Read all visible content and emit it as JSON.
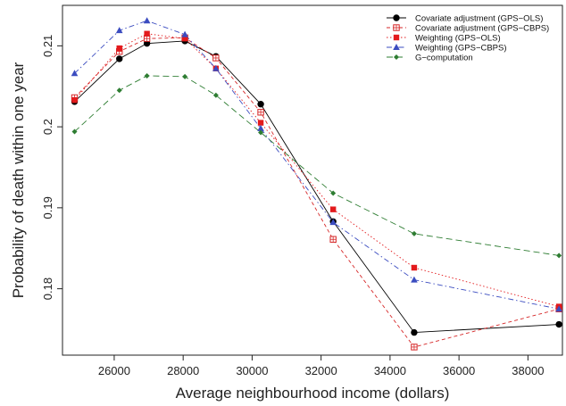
{
  "chart_data": {
    "type": "line",
    "xlabel": "Average neighbourhood income (dollars)",
    "ylabel": "Probability of death within one year",
    "xlim": [
      24500,
      39000
    ],
    "ylim": [
      0.1718,
      0.215
    ],
    "xticks": [
      26000,
      28000,
      30000,
      32000,
      34000,
      36000,
      38000
    ],
    "yticks": [
      0.18,
      0.19,
      0.2,
      0.21
    ],
    "x": [
      24850,
      26150,
      26950,
      28050,
      28950,
      30250,
      32350,
      34700,
      38900
    ],
    "grid": false,
    "legend_position": "top-right",
    "series": [
      {
        "name": "Covariate adjustment (GPS−OLS)",
        "color": "#000000",
        "line": "solid",
        "marker": "circle",
        "values": [
          0.2031,
          0.2084,
          0.2103,
          0.2106,
          0.2087,
          0.2028,
          0.1883,
          0.1746,
          0.1756
        ]
      },
      {
        "name": "Covariate adjustment (GPS−CBPS)",
        "color": "#d62728",
        "line": "dashed",
        "marker": "square-open",
        "values": [
          0.2036,
          0.2093,
          0.2109,
          0.211,
          0.2085,
          0.2018,
          0.1861,
          0.1728,
          0.1775
        ]
      },
      {
        "name": "Weighting (GPS−OLS)",
        "color": "#e31a1c",
        "line": "dotted",
        "marker": "square",
        "values": [
          0.2033,
          0.2097,
          0.2115,
          0.2109,
          0.2072,
          0.2005,
          0.1898,
          0.1826,
          0.1778
        ]
      },
      {
        "name": "Weighting (GPS−CBPS)",
        "color": "#3b4cc0",
        "line": "dashdot",
        "marker": "triangle",
        "values": [
          0.2066,
          0.2119,
          0.2131,
          0.2114,
          0.2072,
          0.1998,
          0.1882,
          0.1811,
          0.1775
        ]
      },
      {
        "name": "G−computation",
        "color": "#2e7d32",
        "line": "longdash",
        "marker": "diamond",
        "values": [
          0.1994,
          0.2045,
          0.2063,
          0.2062,
          0.2039,
          0.1993,
          0.1918,
          0.1868,
          0.1841
        ]
      }
    ]
  }
}
